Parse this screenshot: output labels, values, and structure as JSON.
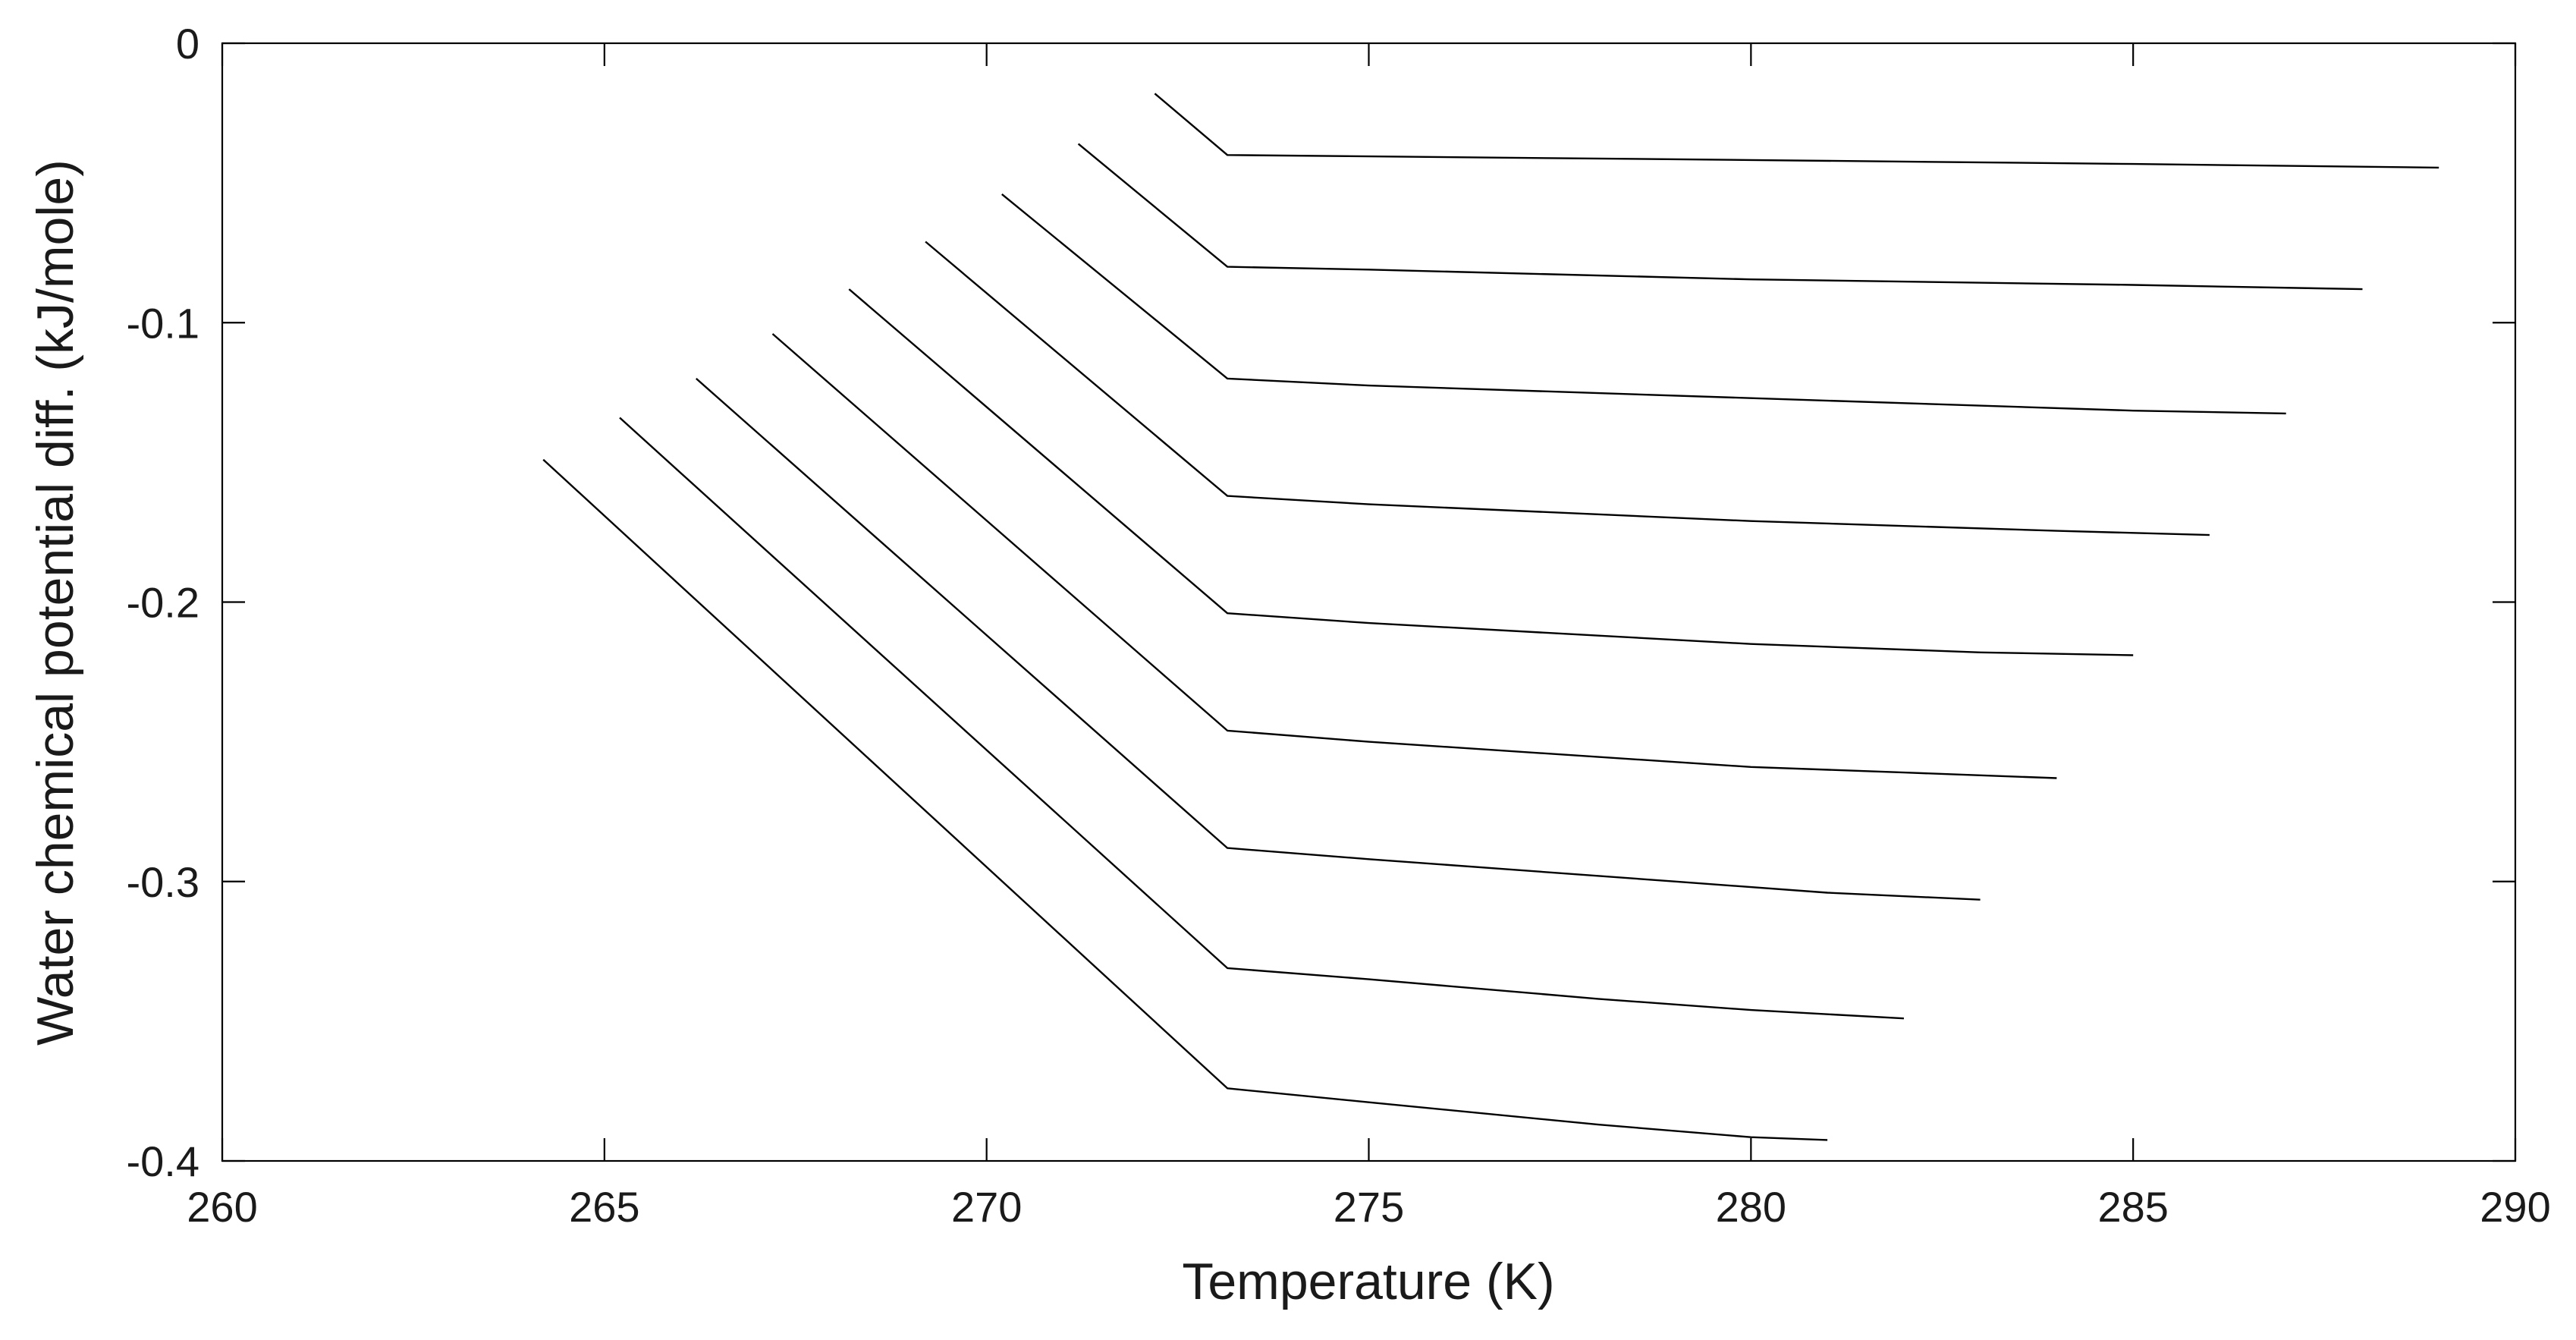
{
  "chart_data": {
    "type": "line",
    "xlabel": "Temperature (K)",
    "ylabel": "Water chemical potential diff. (kJ/mole)",
    "xlim": [
      260,
      290
    ],
    "ylim": [
      -0.4,
      0
    ],
    "xticks": [
      260,
      265,
      270,
      275,
      280,
      285,
      290
    ],
    "yticks": [
      0,
      -0.1,
      -0.2,
      -0.3,
      -0.4
    ],
    "xtick_labels": [
      "260",
      "265",
      "270",
      "275",
      "280",
      "285",
      "290"
    ],
    "ytick_labels": [
      "0",
      "-0.1",
      "-0.2",
      "-0.3",
      "-0.4"
    ],
    "grid": false,
    "legend": "none",
    "series": [
      {
        "x": [
          272.2,
          273.15,
          275,
          280,
          285,
          289
        ],
        "y": [
          -0.018,
          -0.04,
          -0.0405,
          -0.0418,
          -0.0432,
          -0.0445
        ]
      },
      {
        "x": [
          271.2,
          273.15,
          275,
          280,
          285,
          288
        ],
        "y": [
          -0.036,
          -0.08,
          -0.081,
          -0.0845,
          -0.0865,
          -0.088
        ]
      },
      {
        "x": [
          270.2,
          273.15,
          275,
          280,
          285,
          287
        ],
        "y": [
          -0.054,
          -0.12,
          -0.1225,
          -0.127,
          -0.1315,
          -0.1325
        ]
      },
      {
        "x": [
          269.2,
          273.15,
          275,
          280,
          284,
          286
        ],
        "y": [
          -0.071,
          -0.162,
          -0.165,
          -0.171,
          -0.1745,
          -0.176
        ]
      },
      {
        "x": [
          268.2,
          273.15,
          275,
          280,
          283,
          285
        ],
        "y": [
          -0.088,
          -0.204,
          -0.2075,
          -0.215,
          -0.218,
          -0.219
        ]
      },
      {
        "x": [
          267.2,
          273.15,
          275,
          280,
          282,
          284
        ],
        "y": [
          -0.104,
          -0.246,
          -0.25,
          -0.259,
          -0.261,
          -0.263
        ]
      },
      {
        "x": [
          266.2,
          273.15,
          275,
          279,
          281,
          283
        ],
        "y": [
          -0.12,
          -0.288,
          -0.292,
          -0.3,
          -0.304,
          -0.3065
        ]
      },
      {
        "x": [
          265.2,
          273.15,
          275,
          278,
          280,
          282
        ],
        "y": [
          -0.134,
          -0.331,
          -0.335,
          -0.342,
          -0.346,
          -0.349
        ]
      },
      {
        "x": [
          264.2,
          273.15,
          275,
          278,
          280,
          281
        ],
        "y": [
          -0.149,
          -0.374,
          -0.379,
          -0.387,
          -0.3915,
          -0.3925
        ]
      }
    ]
  }
}
